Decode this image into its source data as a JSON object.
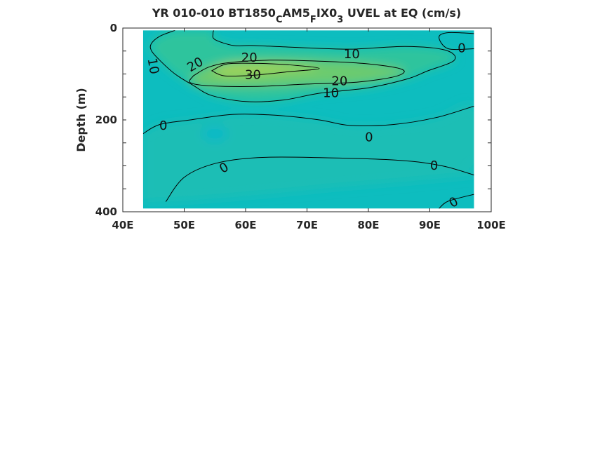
{
  "chart_data": {
    "type": "contour",
    "title": {
      "parts": [
        {
          "text": "YR 010-010 BT1850",
          "sub": false
        },
        {
          "text": "C",
          "sub": true
        },
        {
          "text": "AM5",
          "sub": false
        },
        {
          "text": "F",
          "sub": true
        },
        {
          "text": "IX0",
          "sub": false
        },
        {
          "text": "3",
          "sub": true
        },
        {
          "text": " UVEL at EQ (cm/s)",
          "sub": false
        }
      ]
    },
    "xlabel": "",
    "ylabel": "Depth (m)",
    "xlim": [
      40,
      100
    ],
    "ylim": [
      0,
      400
    ],
    "y_reversed": true,
    "x_ticks": [
      40,
      50,
      60,
      70,
      80,
      90,
      100
    ],
    "x_tick_labels": [
      "40E",
      "50E",
      "60E",
      "70E",
      "80E",
      "90E",
      "100E"
    ],
    "y_ticks": [
      0,
      200,
      400
    ],
    "y_tick_labels": [
      "0",
      "200",
      "400"
    ],
    "data_extent": {
      "lon": [
        43.3,
        97.2
      ],
      "depth": [
        5,
        393
      ]
    },
    "colors": {
      "background": "#0dbdbf",
      "level_0": "#1abeb5",
      "level_10": "#2fc49d",
      "level_20": "#6ccb6e",
      "level_30": "#9bd25a",
      "negative_patch": "#08b9c6"
    },
    "contours": [
      {
        "level": 10,
        "points": [
          [
            48.5,
            5
          ],
          [
            46,
            18
          ],
          [
            44.6,
            35
          ],
          [
            44.7,
            50
          ],
          [
            46,
            70
          ],
          [
            48.5,
            100
          ],
          [
            51.5,
            125
          ],
          [
            54.5,
            147
          ],
          [
            60,
            160
          ],
          [
            66,
            157
          ],
          [
            72,
            142
          ],
          [
            80,
            130
          ],
          [
            86.5,
            110
          ],
          [
            89.5,
            94
          ],
          [
            94,
            70
          ],
          [
            92.5,
            48
          ],
          [
            86,
            40
          ],
          [
            77,
            46
          ],
          [
            68,
            42
          ],
          [
            61,
            38
          ],
          [
            58,
            38
          ],
          [
            55,
            25
          ],
          [
            54.7,
            12
          ],
          [
            54.8,
            5
          ]
        ]
      },
      {
        "level": 20,
        "points": [
          [
            51.5,
            104
          ],
          [
            54,
            85
          ],
          [
            57.5,
            75
          ],
          [
            64,
            70
          ],
          [
            72,
            72
          ],
          [
            80,
            78
          ],
          [
            85.5,
            90
          ],
          [
            84.5,
            105
          ],
          [
            78,
            118
          ],
          [
            70,
            122
          ],
          [
            62,
            127
          ],
          [
            54.5,
            126
          ],
          [
            51,
            119
          ],
          [
            51.5,
            104
          ]
        ]
      },
      {
        "level": 30,
        "points": [
          [
            54.5,
            93
          ],
          [
            57,
            78
          ],
          [
            62,
            77
          ],
          [
            67,
            80
          ],
          [
            72,
            88
          ],
          [
            67,
            95
          ],
          [
            61,
            103
          ],
          [
            56.5,
            104
          ],
          [
            54.5,
            93
          ]
        ]
      },
      {
        "level": 0,
        "points": [
          [
            43.3,
            230
          ],
          [
            46,
            210
          ],
          [
            51,
            200
          ],
          [
            58,
            188
          ],
          [
            65,
            190
          ],
          [
            72,
            200
          ],
          [
            77,
            212
          ],
          [
            84,
            210
          ],
          [
            91,
            195
          ],
          [
            97.2,
            170
          ]
        ]
      },
      {
        "level": 0,
        "points": [
          [
            97.2,
            320
          ],
          [
            92,
            300
          ],
          [
            85,
            288
          ],
          [
            72,
            282
          ],
          [
            62,
            282
          ],
          [
            55,
            295
          ],
          [
            50,
            325
          ],
          [
            47,
            378
          ]
        ]
      },
      {
        "level": 0,
        "points": [
          [
            97.2,
            362
          ],
          [
            93,
            377
          ],
          [
            91.5,
            393
          ]
        ]
      },
      {
        "level": 0,
        "points": [
          [
            97.2,
            12
          ],
          [
            93,
            10
          ],
          [
            91.5,
            20
          ],
          [
            93,
            45
          ],
          [
            97.2,
            45
          ]
        ]
      }
    ],
    "labels": [
      {
        "text": "10",
        "lon": 44.9,
        "depth": 83,
        "rot": 80
      },
      {
        "text": "20",
        "lon": 51.8,
        "depth": 80,
        "rot": -30
      },
      {
        "text": "20",
        "lon": 60.6,
        "depth": 65,
        "rot": 0
      },
      {
        "text": "30",
        "lon": 61.2,
        "depth": 102,
        "rot": 0
      },
      {
        "text": "10",
        "lon": 77.3,
        "depth": 57,
        "rot": 0
      },
      {
        "text": "20",
        "lon": 75.3,
        "depth": 116,
        "rot": 0
      },
      {
        "text": "10",
        "lon": 73.9,
        "depth": 142,
        "rot": 0
      },
      {
        "text": "0",
        "lon": 95.2,
        "depth": 44,
        "rot": 0
      },
      {
        "text": "0",
        "lon": 46.6,
        "depth": 213,
        "rot": 0
      },
      {
        "text": "0",
        "lon": 80.1,
        "depth": 238,
        "rot": 0
      },
      {
        "text": "0",
        "lon": 56.5,
        "depth": 305,
        "rot": -30
      },
      {
        "text": "0",
        "lon": 90.7,
        "depth": 300,
        "rot": 0
      },
      {
        "text": "0",
        "lon": 93.9,
        "depth": 380,
        "rot": -30
      }
    ],
    "grid": false,
    "legend": "none"
  }
}
